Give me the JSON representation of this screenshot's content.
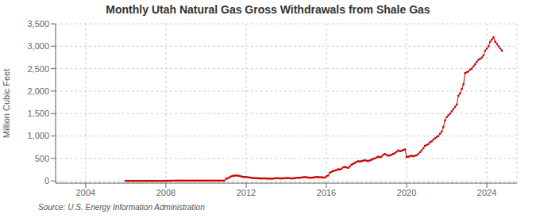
{
  "chart_data": {
    "type": "line",
    "title": "Monthly Utah Natural Gas Gross Withdrawals from Shale Gas",
    "ylabel": "Million Cubic Feet",
    "annotations": [
      "Source: U.S. Energy Information Administration"
    ],
    "color": "#cc0000",
    "marker": "square",
    "grid": true,
    "xlim": [
      2002.5,
      2025.5
    ],
    "xticks": [
      2004,
      2008,
      2012,
      2016,
      2020,
      2024
    ],
    "ylim": [
      -50,
      3500
    ],
    "yticks": [
      0,
      500,
      {
        "value": 1000,
        "label": "1,000"
      },
      {
        "value": 1500,
        "label": "1,500"
      },
      {
        "value": 2000,
        "label": "2,000"
      },
      {
        "value": 2500,
        "label": "2,500"
      },
      {
        "value": 3000,
        "label": "3,000"
      },
      {
        "value": 3500,
        "label": "3,500"
      }
    ],
    "x": [
      2006,
      2006.0833333333333,
      2006.1666666666667,
      2006.25,
      2006.3333333333333,
      2006.4166666666667,
      2006.5,
      2006.5833333333333,
      2006.6666666666667,
      2006.75,
      2006.8333333333333,
      2006.9166666666667,
      2007,
      2007.0833333333333,
      2007.1666666666667,
      2007.25,
      2007.3333333333333,
      2007.4166666666667,
      2007.5,
      2007.5833333333333,
      2007.6666666666667,
      2007.75,
      2007.8333333333333,
      2007.9166666666667,
      2008,
      2008.0833333333333,
      2008.1666666666667,
      2008.25,
      2008.3333333333333,
      2008.4166666666667,
      2008.5,
      2008.5833333333333,
      2008.6666666666667,
      2008.75,
      2008.8333333333333,
      2008.9166666666667,
      2009,
      2009.0833333333333,
      2009.1666666666667,
      2009.25,
      2009.3333333333333,
      2009.4166666666667,
      2009.5,
      2009.5833333333333,
      2009.6666666666667,
      2009.75,
      2009.8333333333333,
      2009.9166666666667,
      2010,
      2010.0833333333333,
      2010.1666666666667,
      2010.25,
      2010.3333333333333,
      2010.4166666666667,
      2010.5,
      2010.5833333333333,
      2010.6666666666667,
      2010.75,
      2010.8333333333333,
      2010.9166666666667,
      2011,
      2011.0833333333333,
      2011.1666666666667,
      2011.25,
      2011.3333333333333,
      2011.4166666666667,
      2011.5,
      2011.5833333333333,
      2011.6666666666667,
      2011.75,
      2011.8333333333333,
      2011.9166666666667,
      2012,
      2012.0833333333333,
      2012.1666666666667,
      2012.25,
      2012.3333333333333,
      2012.4166666666667,
      2012.5,
      2012.5833333333333,
      2012.6666666666667,
      2012.75,
      2012.8333333333333,
      2012.9166666666667,
      2013,
      2013.0833333333333,
      2013.1666666666667,
      2013.25,
      2013.3333333333333,
      2013.4166666666667,
      2013.5,
      2013.5833333333333,
      2013.6666666666667,
      2013.75,
      2013.8333333333333,
      2013.9166666666667,
      2014,
      2014.0833333333333,
      2014.1666666666667,
      2014.25,
      2014.3333333333333,
      2014.4166666666667,
      2014.5,
      2014.5833333333333,
      2014.6666666666667,
      2014.75,
      2014.8333333333333,
      2014.9166666666667,
      2015,
      2015.0833333333333,
      2015.1666666666667,
      2015.25,
      2015.3333333333333,
      2015.4166666666667,
      2015.5,
      2015.5833333333333,
      2015.6666666666667,
      2015.75,
      2015.8333333333333,
      2015.9166666666667,
      2016,
      2016.0833333333333,
      2016.1666666666667,
      2016.25,
      2016.3333333333333,
      2016.4166666666667,
      2016.5,
      2016.5833333333333,
      2016.6666666666667,
      2016.75,
      2016.8333333333333,
      2016.9166666666667,
      2017,
      2017.0833333333333,
      2017.1666666666667,
      2017.25,
      2017.3333333333333,
      2017.4166666666667,
      2017.5,
      2017.5833333333333,
      2017.6666666666667,
      2017.75,
      2017.8333333333333,
      2017.9166666666667,
      2018,
      2018.0833333333333,
      2018.1666666666667,
      2018.25,
      2018.3333333333333,
      2018.4166666666667,
      2018.5,
      2018.5833333333333,
      2018.6666666666667,
      2018.75,
      2018.8333333333333,
      2018.9166666666667,
      2019,
      2019.0833333333333,
      2019.1666666666667,
      2019.25,
      2019.3333333333333,
      2019.4166666666667,
      2019.5,
      2019.5833333333333,
      2019.6666666666667,
      2019.75,
      2019.8333333333333,
      2019.9166666666667,
      2020,
      2020.0833333333333,
      2020.1666666666667,
      2020.25,
      2020.3333333333333,
      2020.4166666666667,
      2020.5,
      2020.5833333333333,
      2020.6666666666667,
      2020.75,
      2020.8333333333333,
      2020.9166666666667,
      2021,
      2021.0833333333333,
      2021.1666666666667,
      2021.25,
      2021.3333333333333,
      2021.4166666666667,
      2021.5,
      2021.5833333333333,
      2021.6666666666667,
      2021.75,
      2021.8333333333333,
      2021.9166666666667,
      2022,
      2022.0833333333333,
      2022.1666666666667,
      2022.25,
      2022.3333333333333,
      2022.4166666666667,
      2022.5,
      2022.5833333333333,
      2022.6666666666667,
      2022.75,
      2022.8333333333333,
      2022.9166666666667,
      2023,
      2023.0833333333333,
      2023.1666666666667,
      2023.25,
      2023.3333333333333,
      2023.4166666666667,
      2023.5,
      2023.5833333333333,
      2023.6666666666667,
      2023.75,
      2023.8333333333333,
      2023.9166666666667,
      2024,
      2024.0833333333333,
      2024.1666666666667,
      2024.25,
      2024.3333333333333,
      2024.4166666666667,
      2024.5,
      2024.5833333333333,
      2024.6666666666667,
      2024.75
    ],
    "values": [
      0,
      0,
      0,
      0,
      0,
      0,
      0,
      0,
      0,
      0,
      0,
      0,
      0,
      0,
      0,
      0,
      0,
      0,
      0,
      0,
      0,
      0,
      0,
      0,
      2,
      2,
      3,
      3,
      4,
      4,
      5,
      5,
      5,
      5,
      5,
      5,
      5,
      5,
      5,
      5,
      5,
      5,
      5,
      5,
      5,
      5,
      5,
      5,
      5,
      5,
      5,
      5,
      5,
      5,
      5,
      5,
      5,
      5,
      5,
      5,
      50,
      55,
      80,
      100,
      110,
      115,
      120,
      115,
      110,
      100,
      90,
      85,
      90,
      80,
      75,
      70,
      65,
      60,
      60,
      60,
      55,
      55,
      55,
      55,
      55,
      50,
      50,
      50,
      50,
      55,
      60,
      60,
      55,
      55,
      55,
      60,
      65,
      60,
      60,
      55,
      55,
      60,
      65,
      70,
      70,
      75,
      80,
      85,
      80,
      75,
      70,
      70,
      75,
      80,
      85,
      85,
      80,
      80,
      75,
      75,
      100,
      120,
      180,
      200,
      220,
      230,
      240,
      260,
      250,
      270,
      300,
      310,
      300,
      290,
      320,
      360,
      380,
      400,
      420,
      440,
      430,
      440,
      450,
      460,
      450,
      440,
      460,
      470,
      490,
      500,
      520,
      540,
      530,
      540,
      580,
      600,
      580,
      560,
      570,
      580,
      600,
      620,
      650,
      680,
      660,
      670,
      690,
      700,
      530,
      540,
      550,
      560,
      550,
      560,
      570,
      600,
      640,
      680,
      730,
      780,
      800,
      820,
      860,
      880,
      920,
      950,
      980,
      1000,
      1050,
      1100,
      1200,
      1350,
      1420,
      1460,
      1500,
      1550,
      1600,
      1650,
      1700,
      1900,
      1950,
      2050,
      2150,
      2400,
      2420,
      2440,
      2480,
      2500,
      2550,
      2600,
      2650,
      2700,
      2720,
      2750,
      2800,
      2900,
      2950,
      3000,
      3100,
      3150,
      3200,
      3100,
      3050,
      3000,
      2950,
      2900
    ]
  }
}
